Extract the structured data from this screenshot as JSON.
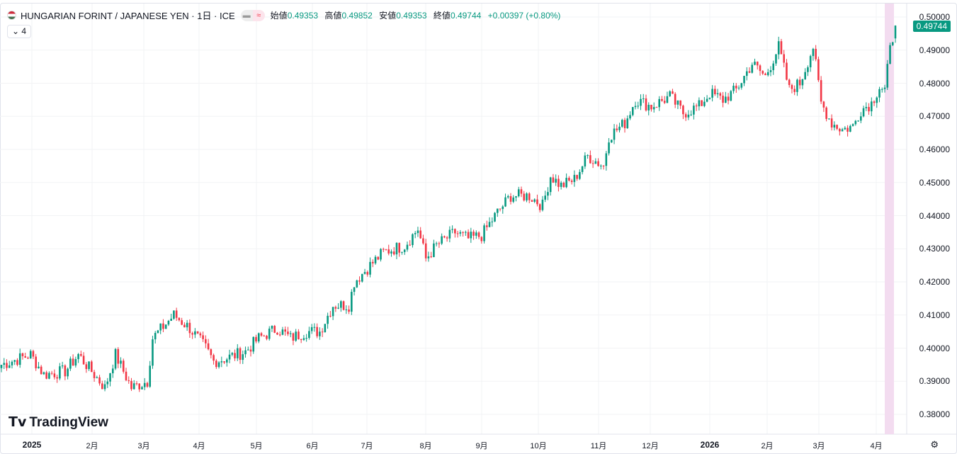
{
  "header": {
    "symbol": "HUNGARIAN FORINT / JAPANESE YEN · 1日 · ICE",
    "collapse_label": "4",
    "ohlc": [
      {
        "k": "始値",
        "v": "0.49353"
      },
      {
        "k": "高値",
        "v": "0.49852"
      },
      {
        "k": "安値",
        "v": "0.49353"
      },
      {
        "k": "終値",
        "v": "0.49744"
      }
    ],
    "change": "+0.00397 (+0.80%)"
  },
  "price_axis": {
    "labels": [
      "0.50000",
      "0.49000",
      "0.48000",
      "0.47000",
      "0.46000",
      "0.45000",
      "0.44000",
      "0.43000",
      "0.42000",
      "0.41000",
      "0.40000",
      "0.39000",
      "0.38000"
    ],
    "last_price": "0.49744"
  },
  "time_axis": [
    {
      "t": "2025",
      "bold": true
    },
    {
      "t": "2月"
    },
    {
      "t": "3月"
    },
    {
      "t": "4月"
    },
    {
      "t": "5月"
    },
    {
      "t": "6月"
    },
    {
      "t": "7月"
    },
    {
      "t": "8月"
    },
    {
      "t": "9月"
    },
    {
      "t": "10月"
    },
    {
      "t": "11月"
    },
    {
      "t": "12月"
    },
    {
      "t": "2026",
      "bold": true
    },
    {
      "t": "2月"
    },
    {
      "t": "3月"
    },
    {
      "t": "4月"
    }
  ],
  "brand": "TradingView",
  "colors": {
    "up": "#089981",
    "down": "#f23645",
    "highlight": "#f3dcf0"
  },
  "chart_data": {
    "type": "candlestick",
    "ylim": [
      0.375,
      0.502
    ],
    "days": 338,
    "anchors": [
      [
        0,
        0.395
      ],
      [
        11,
        0.398
      ],
      [
        16,
        0.392
      ],
      [
        24,
        0.393
      ],
      [
        29,
        0.398
      ],
      [
        39,
        0.388
      ],
      [
        43,
        0.398
      ],
      [
        49,
        0.388
      ],
      [
        55,
        0.39
      ],
      [
        57,
        0.403
      ],
      [
        65,
        0.41
      ],
      [
        71,
        0.406
      ],
      [
        77,
        0.4
      ],
      [
        80,
        0.396
      ],
      [
        85,
        0.397
      ],
      [
        92,
        0.399
      ],
      [
        97,
        0.403
      ],
      [
        104,
        0.406
      ],
      [
        109,
        0.403
      ],
      [
        115,
        0.405
      ],
      [
        120,
        0.405
      ],
      [
        125,
        0.413
      ],
      [
        131,
        0.413
      ],
      [
        133,
        0.42
      ],
      [
        139,
        0.425
      ],
      [
        144,
        0.429
      ],
      [
        152,
        0.431
      ],
      [
        157,
        0.436
      ],
      [
        160,
        0.427
      ],
      [
        164,
        0.431
      ],
      [
        171,
        0.435
      ],
      [
        176,
        0.433
      ],
      [
        181,
        0.434
      ],
      [
        187,
        0.441
      ],
      [
        192,
        0.446
      ],
      [
        199,
        0.446
      ],
      [
        204,
        0.443
      ],
      [
        207,
        0.452
      ],
      [
        211,
        0.449
      ],
      [
        216,
        0.451
      ],
      [
        221,
        0.458
      ],
      [
        227,
        0.455
      ],
      [
        229,
        0.464
      ],
      [
        235,
        0.468
      ],
      [
        239,
        0.475
      ],
      [
        245,
        0.473
      ],
      [
        252,
        0.476
      ],
      [
        257,
        0.471
      ],
      [
        263,
        0.473
      ],
      [
        267,
        0.477
      ],
      [
        272,
        0.475
      ],
      [
        277,
        0.478
      ],
      [
        283,
        0.486
      ],
      [
        288,
        0.482
      ],
      [
        293,
        0.491
      ],
      [
        297,
        0.478
      ],
      [
        301,
        0.48
      ],
      [
        306,
        0.491
      ],
      [
        309,
        0.474
      ],
      [
        313,
        0.468
      ],
      [
        317,
        0.466
      ],
      [
        321,
        0.467
      ],
      [
        324,
        0.472
      ],
      [
        328,
        0.474
      ],
      [
        331,
        0.479
      ],
      [
        333,
        0.478
      ],
      [
        335,
        0.49
      ],
      [
        337,
        0.4974
      ]
    ]
  }
}
